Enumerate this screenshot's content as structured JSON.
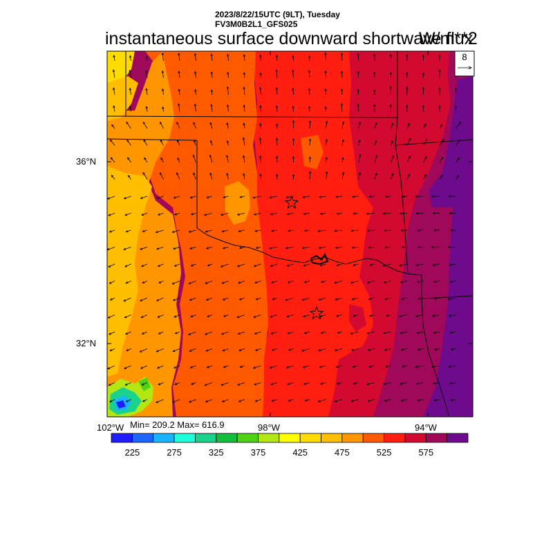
{
  "header": {
    "datetime": "2023/8/22/15UTC (9LT), Tuesday",
    "model": "FV3M0B2L1_GFS025",
    "title": "instantaneous surface downward shortwave flux",
    "units": "W/m**2"
  },
  "axes": {
    "lat_labels": [
      "36°N",
      "32°N"
    ],
    "lon_labels": [
      "102°W",
      "98°W",
      "94°W"
    ]
  },
  "stats": {
    "text": "Min= 209.2 Max= 616.9",
    "min": 209.2,
    "max": 616.9
  },
  "ref_vector": {
    "label": "8"
  },
  "colorbar": {
    "labels": [
      "225",
      "275",
      "325",
      "375",
      "425",
      "475",
      "525",
      "575"
    ],
    "colors": [
      "#1e1eff",
      "#1e64ff",
      "#19b4ff",
      "#1effdc",
      "#19d28c",
      "#12be3c",
      "#50d214",
      "#b4e614",
      "#ffff00",
      "#ffdc00",
      "#ffbe00",
      "#ff9600",
      "#ff5a00",
      "#ff1e10",
      "#d20a32",
      "#a0085a",
      "#6e0a8c"
    ]
  },
  "map": {
    "regions": [
      {
        "name": "region-yellow-northwest",
        "color": "#ffdc00"
      },
      {
        "name": "region-gold-west",
        "color": "#ffbe00"
      },
      {
        "name": "region-orange-west",
        "color": "#ff9600"
      },
      {
        "name": "region-darkorange-center-west",
        "color": "#ff5a00"
      },
      {
        "name": "region-red-center",
        "color": "#ff1e10"
      },
      {
        "name": "region-crimson-east",
        "color": "#d20a32"
      },
      {
        "name": "region-magenta-east",
        "color": "#a0085a"
      },
      {
        "name": "region-purple-southeast",
        "color": "#6e0a8c"
      }
    ],
    "markers": [
      {
        "name": "star-oklahoma-city"
      },
      {
        "name": "star-dallas"
      }
    ]
  }
}
